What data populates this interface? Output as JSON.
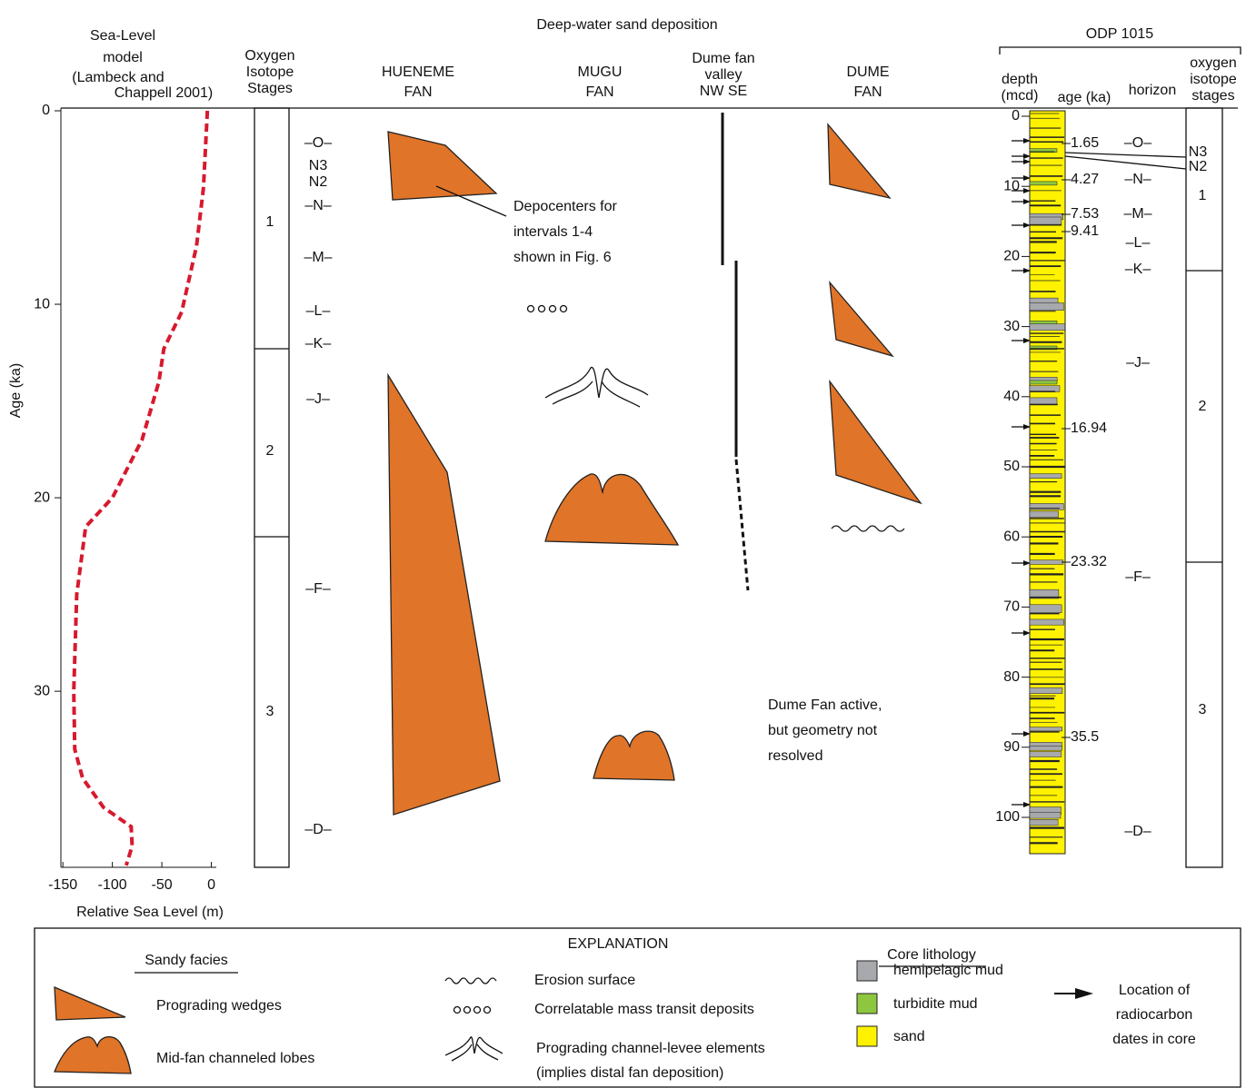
{
  "header": "Deep-water sand deposition",
  "chart_data": {
    "type": "line",
    "title": [
      "Sea-Level",
      "model"
    ],
    "subtitle": [
      "(Lambeck and",
      "Chappell 2001)"
    ],
    "x_label": "Relative Sea Level (m)",
    "y_label": "Age (ka)",
    "color": "#d7192e",
    "x": [
      -4,
      -8,
      -15,
      -30,
      -48,
      -53,
      -70,
      -100,
      -127,
      -136,
      -139,
      -138,
      -130,
      -109,
      -81,
      -80,
      -86
    ],
    "values": [
      0,
      4,
      7,
      10.4,
      12.3,
      14,
      17,
      20,
      21.5,
      25,
      30,
      33,
      34.5,
      36,
      37,
      38,
      39
    ],
    "xlim": [
      -152,
      5
    ],
    "xticks": [
      -150,
      -100,
      -50,
      0
    ],
    "ylim": [
      0,
      39.1
    ],
    "yticks": [
      0,
      10,
      20,
      30
    ]
  },
  "isotope_stages": {
    "label": [
      "Oxygen",
      "Isotope",
      "Stages"
    ],
    "stages": [
      "1",
      "2",
      "3"
    ]
  },
  "horizons": [
    "–O–",
    "N3",
    "N2",
    "–N–",
    "–M–",
    "–L–",
    "–K–",
    "–J–",
    "–F–",
    "–D–"
  ],
  "columns": {
    "hueneme": [
      "HUENEME",
      "FAN"
    ],
    "mugu": [
      "MUGU",
      "FAN"
    ],
    "dume_valley": [
      "Dume fan",
      "valley",
      "NW  SE"
    ],
    "dume": [
      "DUME",
      "FAN"
    ]
  },
  "annotations": {
    "depocenters": [
      "Depocenters for",
      "intervals 1-4",
      "shown in Fig. 6"
    ],
    "dume_active": [
      "Dume Fan active,",
      "but geometry not",
      "resolved"
    ]
  },
  "core": {
    "title": "ODP 1015",
    "headers": {
      "depth": [
        "depth",
        "(mcd)"
      ],
      "age": "age (ka)",
      "horizon": "horizon",
      "stages": [
        "oxygen",
        "isotope",
        "stages"
      ]
    },
    "depth_ticks": [
      0,
      10,
      20,
      30,
      40,
      50,
      60,
      70,
      80,
      90,
      100
    ],
    "ages": [
      "1.65",
      "4.27",
      "7.53",
      "9.41",
      "16.94",
      "23.32",
      "35.5"
    ],
    "horizons": [
      "–O–",
      "N3",
      "N2",
      "–N–",
      "–M–",
      "–L–",
      "–K–",
      "–J–",
      "–F–",
      "–D–"
    ],
    "stages": [
      "1",
      "2",
      "3"
    ]
  },
  "legend": {
    "title": "EXPLANATION",
    "sandy_facies": {
      "title": "Sandy facies",
      "items": [
        "Prograding wedges",
        "Mid-fan channeled lobes"
      ]
    },
    "symbols": [
      "Erosion surface",
      "Correlatable mass transit deposits",
      "Prograding channel-levee elements",
      "(implies distal fan deposition)"
    ],
    "lithology": {
      "title": "Core lithology",
      "items": [
        "hemipelagic mud",
        "turbidite mud",
        "sand"
      ]
    },
    "radiocarbon": [
      "Location of",
      "radiocarbon",
      "dates in core"
    ]
  }
}
